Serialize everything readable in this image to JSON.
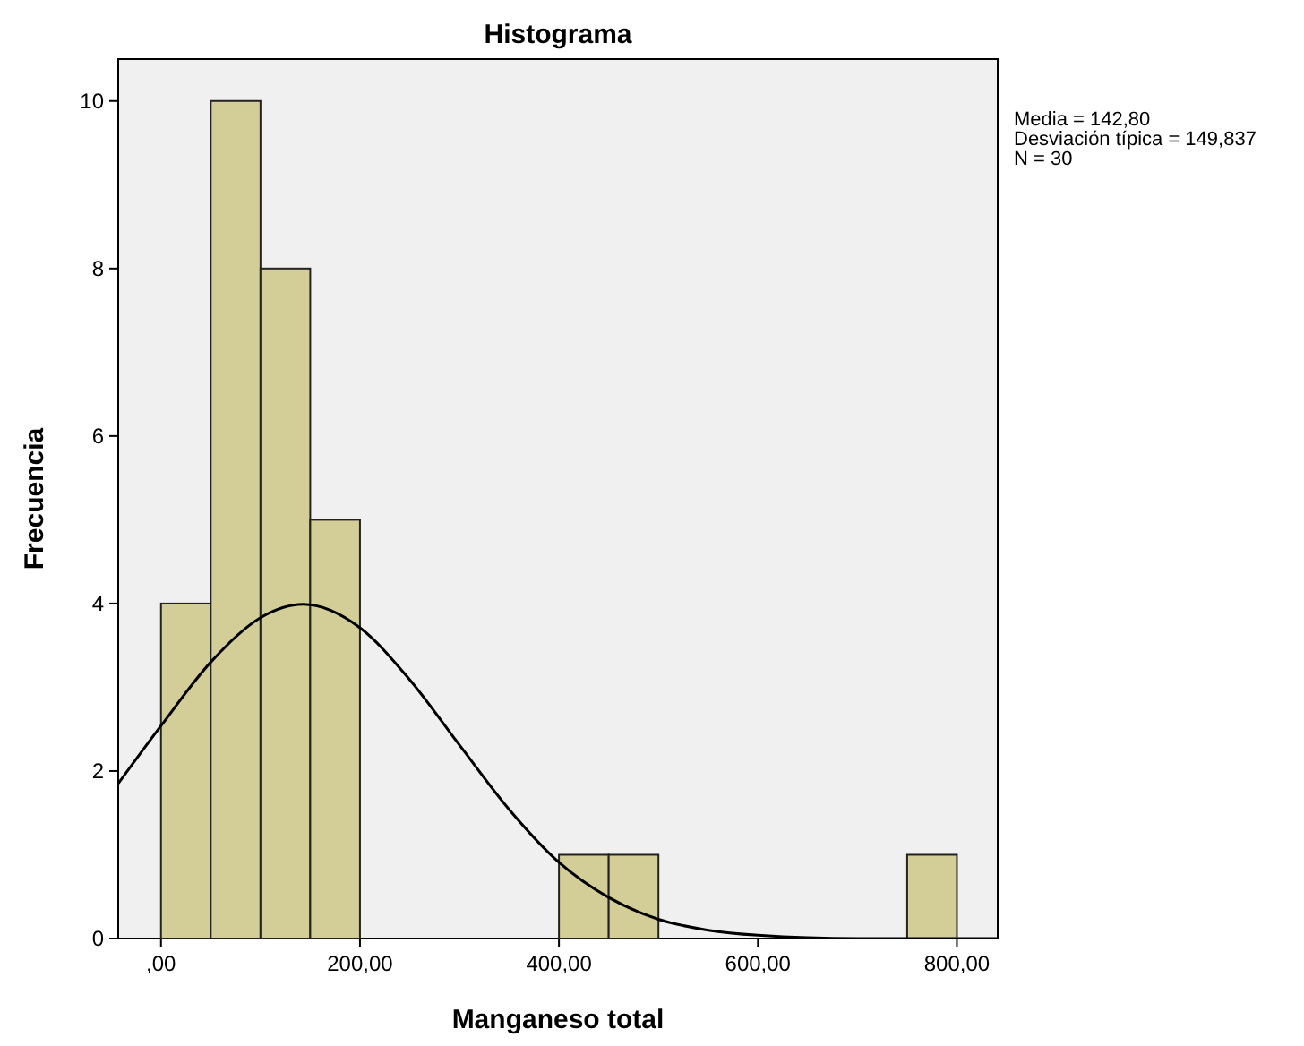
{
  "chart_data": {
    "type": "histogram",
    "title": "Histograma",
    "xlabel": "Manganeso total",
    "ylabel": "Frecuencia",
    "bins": [
      0,
      50,
      100,
      150,
      200,
      250,
      300,
      350,
      400,
      450,
      500,
      550,
      600,
      650,
      700,
      750,
      800
    ],
    "values": [
      4,
      10,
      8,
      5,
      0,
      0,
      0,
      0,
      1,
      1,
      0,
      0,
      0,
      0,
      0,
      1
    ],
    "color": "#d3ce97",
    "series": [
      {
        "type": "line",
        "color": "#000000",
        "x": [
          -43,
          0,
          50,
          100,
          142.8,
          200,
          250,
          300,
          350,
          400,
          450,
          500,
          550,
          600,
          700,
          841
        ],
        "values": [
          1.85,
          2.54,
          3.3,
          3.83,
          3.99,
          3.71,
          3.09,
          2.31,
          1.54,
          0.91,
          0.49,
          0.23,
          0.1,
          0.04,
          0.0,
          0.0
        ]
      }
    ],
    "xlim": [
      -43,
      841
    ],
    "ylim": [
      0,
      10.5
    ],
    "xticks": [
      {
        "value": 0,
        "label": ",00"
      },
      {
        "value": 200,
        "label": "200,00"
      },
      {
        "value": 400,
        "label": "400,00"
      },
      {
        "value": 600,
        "label": "600,00"
      },
      {
        "value": 800,
        "label": "800,00"
      }
    ],
    "yticks": [
      0,
      2,
      4,
      6,
      8,
      10
    ],
    "annotations": [
      "Media = 142,80",
      "Desviación típica = 149,837",
      "N = 30"
    ]
  }
}
